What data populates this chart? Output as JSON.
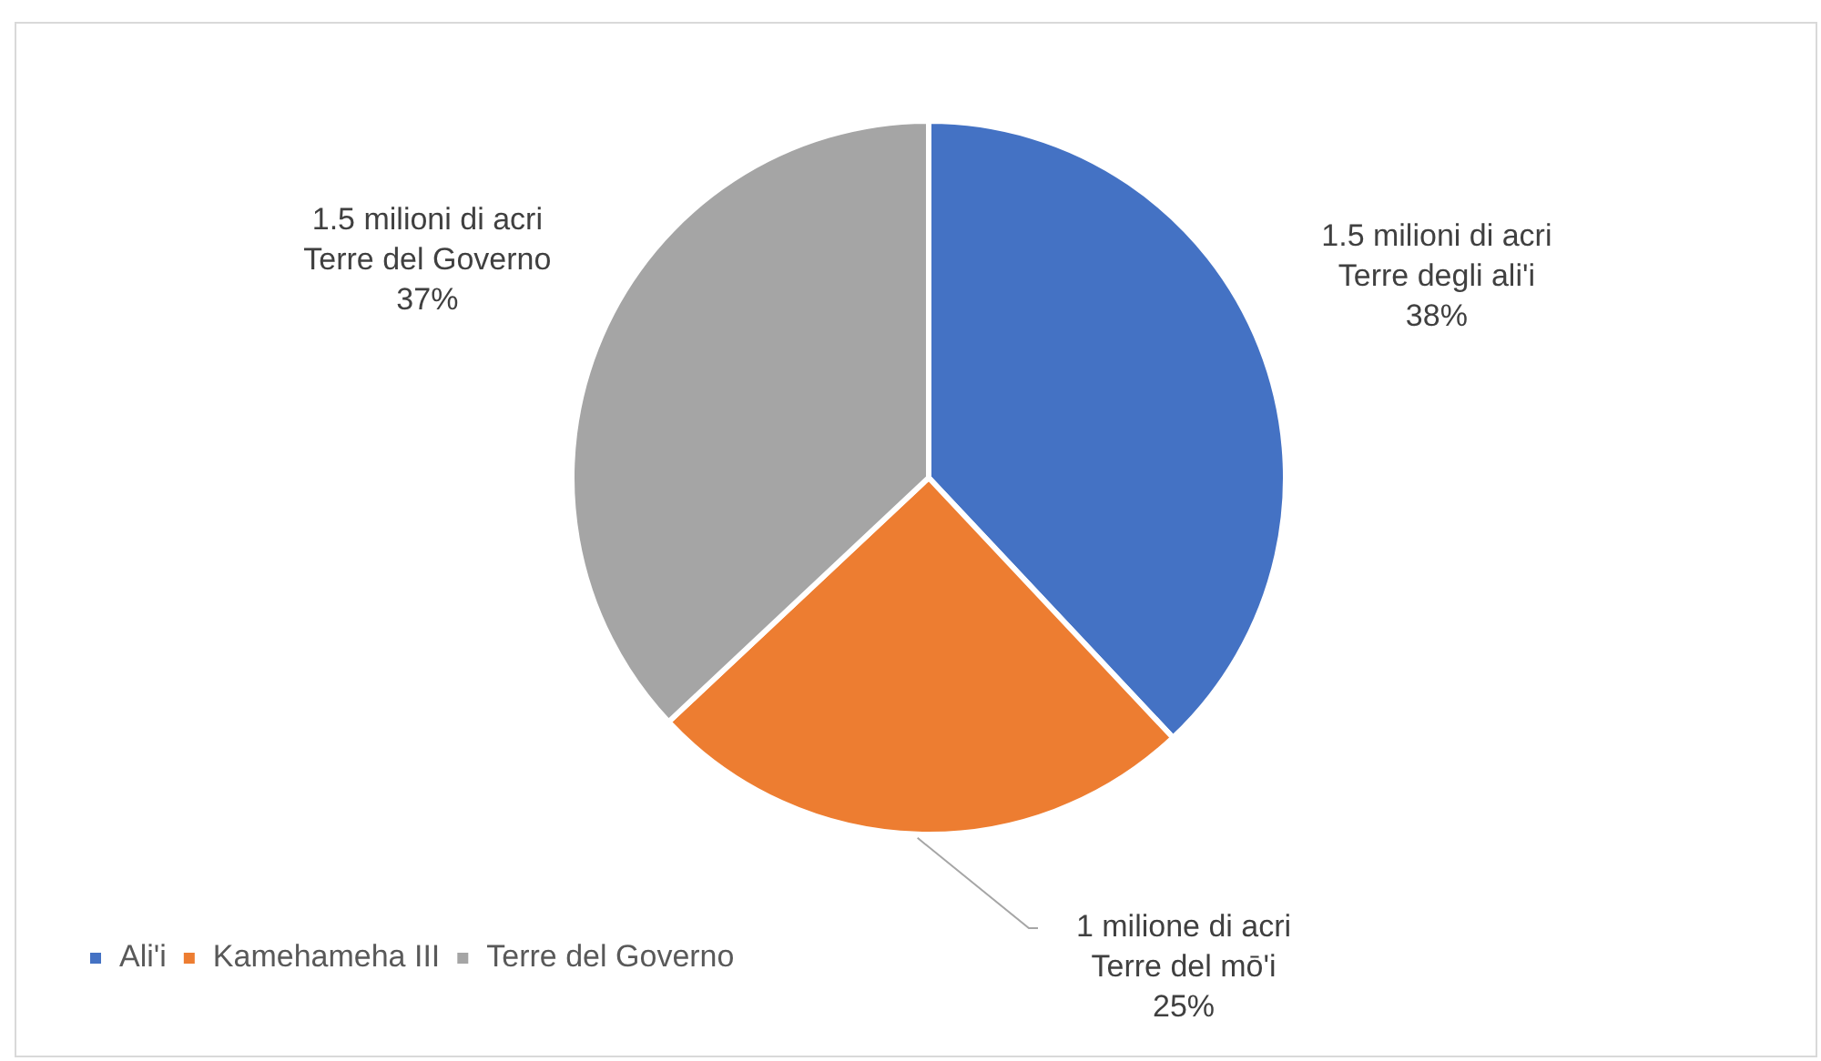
{
  "chart_data": {
    "type": "pie",
    "categories": [
      "Ali'i",
      "Kamehameha III",
      "Terre del Governo"
    ],
    "values": [
      38,
      25,
      37
    ],
    "colors": [
      "#4472c4",
      "#ed7d31",
      "#a5a5a5"
    ],
    "value_labels": [
      "1.5 milioni di acri\nTerre degli ali'i\n38%",
      "1 milione di acri\nTerre del mō'i\n25%",
      "1.5 milioni di acri\nTerre del Governo\n37%"
    ],
    "legend": "bottom left"
  }
}
